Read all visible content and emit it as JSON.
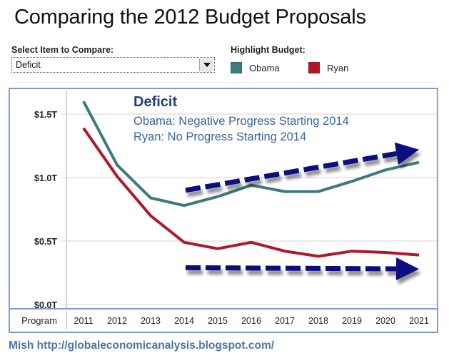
{
  "header": {
    "title": "Comparing the 2012 Budget Proposals"
  },
  "controls": {
    "select_label": "Select Item to Compare:",
    "select_value": "Deficit",
    "highlight_label": "Highlight Budget:",
    "legend": [
      {
        "name": "Obama",
        "color": "#3d7a80"
      },
      {
        "name": "Ryan",
        "color": "#b0182a"
      }
    ]
  },
  "annotation": {
    "heading": "Deficit",
    "line1": "Obama: Negative Progress Starting 2014",
    "line2": "Ryan: No Progress Starting 2014",
    "heading_color": "#1f3f7a",
    "text_color": "#3a64a4",
    "arrow_color": "#0a0a80"
  },
  "footer": {
    "credit": "Mish http://globaleconomicanalysis.blogspot.com/"
  },
  "chart_data": {
    "type": "line",
    "title": "Deficit",
    "xlabel": "Program",
    "ylabel": "",
    "x": [
      "2011",
      "2012",
      "2013",
      "2014",
      "2015",
      "2016",
      "2017",
      "2018",
      "2019",
      "2020",
      "2021"
    ],
    "ylim": [
      0,
      1.6
    ],
    "yticks": [
      0.0,
      0.5,
      1.0,
      1.5
    ],
    "ytick_labels": [
      "$0.0T",
      "$0.5T",
      "$1.0T",
      "$1.5T"
    ],
    "grid": true,
    "series": [
      {
        "name": "Obama",
        "color": "#3d7a80",
        "values": [
          1.6,
          1.1,
          0.84,
          0.78,
          0.85,
          0.94,
          0.89,
          0.89,
          0.97,
          1.06,
          1.12
        ]
      },
      {
        "name": "Ryan",
        "color": "#b0182a",
        "values": [
          1.39,
          1.01,
          0.7,
          0.49,
          0.44,
          0.49,
          0.42,
          0.38,
          0.42,
          0.41,
          0.39
        ]
      }
    ],
    "annotations": [
      {
        "type": "arrow",
        "style": "dashed",
        "from": [
          "2014",
          0.9
        ],
        "to": [
          "2021",
          1.22
        ],
        "meaning": "Obama trend up"
      },
      {
        "type": "arrow",
        "style": "dashed",
        "from": [
          "2014",
          0.29
        ],
        "to": [
          "2021",
          0.28
        ],
        "meaning": "Ryan trend flat"
      }
    ]
  }
}
